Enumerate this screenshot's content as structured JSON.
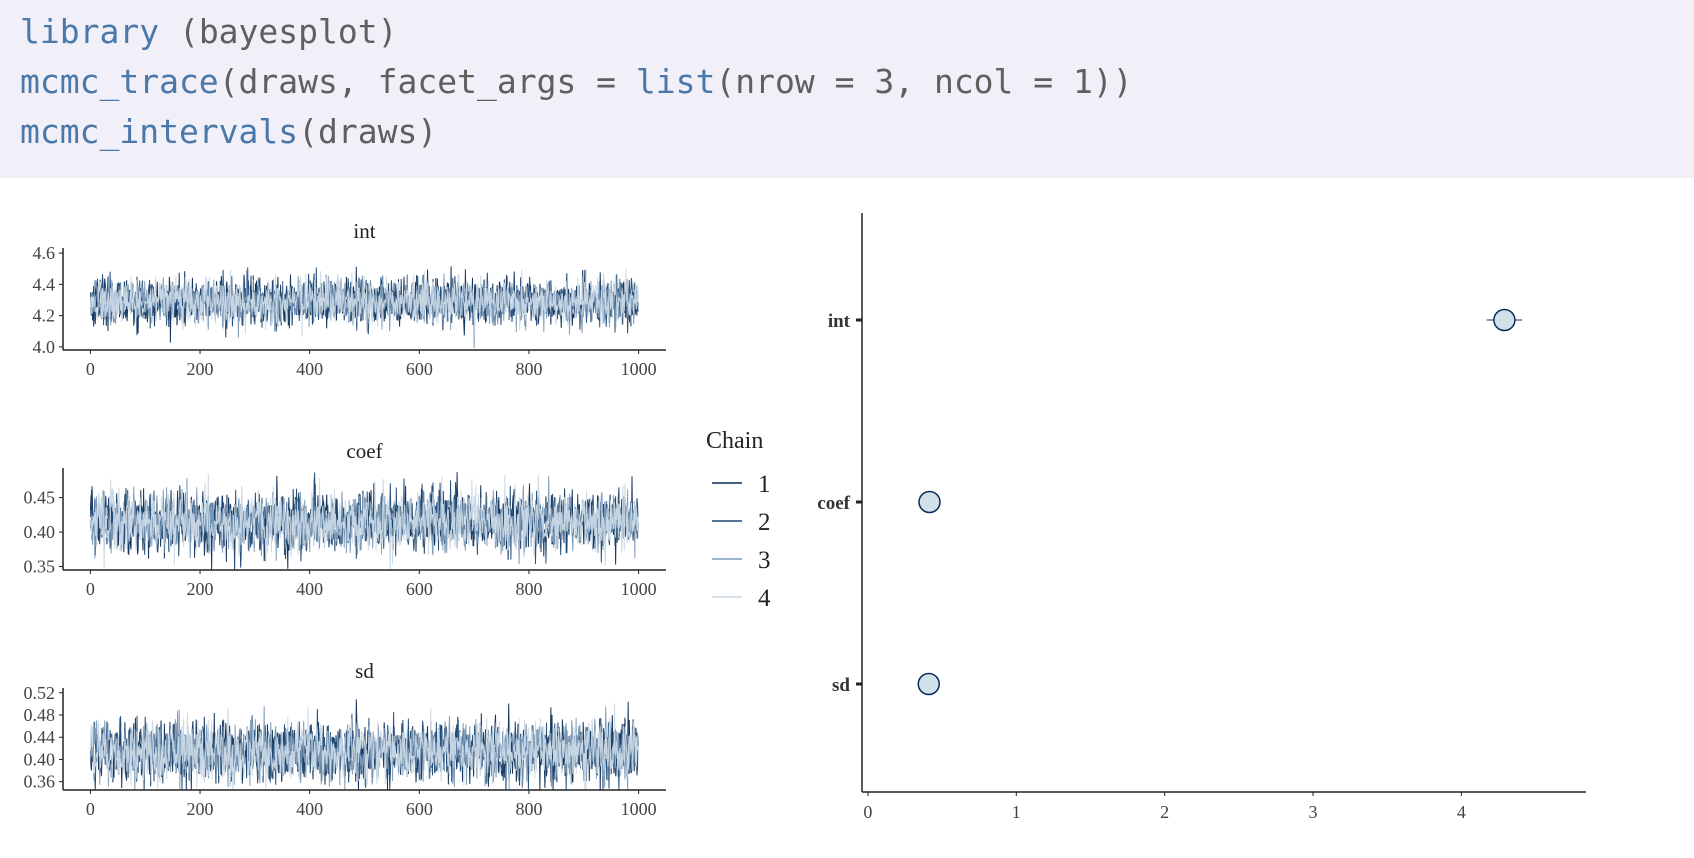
{
  "code": {
    "lines": [
      {
        "fn": "library",
        "rest": " (bayesplot)"
      },
      {
        "fn": "mcmc_trace",
        "rest_a": "(draws, facet_args = ",
        "fn2": "list",
        "rest_b": "(nrow = 3, ncol = 1))"
      },
      {
        "fn": "mcmc_intervals",
        "rest": "(draws)"
      }
    ]
  },
  "colors": {
    "code_bg": "#f1f0f8",
    "code_fn": "#4a78aa",
    "code_text": "#5f5f5f",
    "chains": [
      "#0b2c56",
      "#1d4873",
      "#7d9bb8",
      "#cad9e6"
    ],
    "point_fill": "#d1e1ec",
    "point_stroke": "#0b2c56"
  },
  "chart_data": [
    {
      "type": "line",
      "title": "int",
      "x_ticks": [
        "0",
        "200",
        "400",
        "600",
        "800",
        "1000"
      ],
      "y_ticks": [
        "4.0",
        "4.2",
        "4.4",
        "4.6"
      ],
      "xlim": [
        -50,
        1050
      ],
      "ylim": [
        3.98,
        4.62
      ],
      "iterations": 1000,
      "series": [
        {
          "name": "1",
          "mean": 4.29,
          "sd": 0.075
        },
        {
          "name": "2",
          "mean": 4.29,
          "sd": 0.075
        },
        {
          "name": "3",
          "mean": 4.29,
          "sd": 0.075
        },
        {
          "name": "4",
          "mean": 4.29,
          "sd": 0.075
        }
      ]
    },
    {
      "type": "line",
      "title": "coef",
      "x_ticks": [
        "0",
        "200",
        "400",
        "600",
        "800",
        "1000"
      ],
      "y_ticks": [
        "0.35",
        "0.40",
        "0.45"
      ],
      "xlim": [
        -50,
        1050
      ],
      "ylim": [
        0.345,
        0.49
      ],
      "iterations": 1000,
      "series": [
        {
          "name": "1",
          "mean": 0.415,
          "sd": 0.022
        },
        {
          "name": "2",
          "mean": 0.415,
          "sd": 0.022
        },
        {
          "name": "3",
          "mean": 0.415,
          "sd": 0.022
        },
        {
          "name": "4",
          "mean": 0.415,
          "sd": 0.022
        }
      ]
    },
    {
      "type": "line",
      "title": "sd",
      "x_ticks": [
        "0",
        "200",
        "400",
        "600",
        "800",
        "1000"
      ],
      "y_ticks": [
        "0.36",
        "0.40",
        "0.44",
        "0.48",
        "0.52"
      ],
      "xlim": [
        -50,
        1050
      ],
      "ylim": [
        0.345,
        0.525
      ],
      "iterations": 1000,
      "series": [
        {
          "name": "1",
          "mean": 0.415,
          "sd": 0.027
        },
        {
          "name": "2",
          "mean": 0.415,
          "sd": 0.027
        },
        {
          "name": "3",
          "mean": 0.415,
          "sd": 0.027
        },
        {
          "name": "4",
          "mean": 0.415,
          "sd": 0.027
        }
      ]
    },
    {
      "type": "scatter",
      "parameters": [
        {
          "name": "int",
          "median": 4.29,
          "inner": [
            4.25,
            4.33
          ],
          "outer": [
            4.17,
            4.41
          ]
        },
        {
          "name": "coef",
          "median": 0.415,
          "inner": [
            0.4,
            0.43
          ],
          "outer": [
            0.38,
            0.45
          ]
        },
        {
          "name": "sd",
          "median": 0.41,
          "inner": [
            0.39,
            0.43
          ],
          "outer": [
            0.37,
            0.46
          ]
        }
      ],
      "x_ticks": [
        "0",
        "1",
        "2",
        "3",
        "4"
      ],
      "xlim": [
        -0.04,
        4.84
      ]
    }
  ],
  "legend": {
    "title": "Chain",
    "items": [
      "1",
      "2",
      "3",
      "4"
    ]
  }
}
